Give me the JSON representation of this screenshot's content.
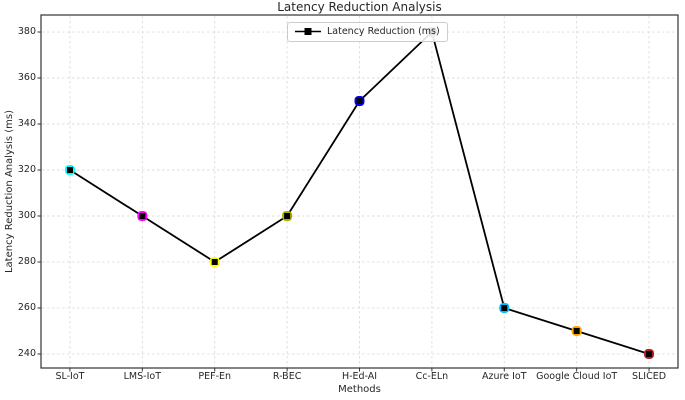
{
  "figure": {
    "background": "#ffffff",
    "spine_color": "#333333",
    "grid_color": "#dcdcdc",
    "text_color": "#262626"
  },
  "chart_data": {
    "type": "line",
    "title": "Latency Reduction Analysis",
    "xlabel": "Methods",
    "ylabel": "Latency Reduction Analysis (ms)",
    "categories": [
      "SL-IoT",
      "LMS-IoT",
      "PEF-En",
      "R-BEC",
      "H-Ed-AI",
      "Cc-ELn",
      "Azure IoT",
      "Google Cloud IoT",
      "SLICED"
    ],
    "series": [
      {
        "name": "Latency Reduction (ms)",
        "values": [
          320,
          300,
          280,
          300,
          350,
          380,
          260,
          250,
          240
        ],
        "line_color": "#000000",
        "marker": "square",
        "marker_face_color": "#000000",
        "marker_edge_colors": [
          "#00FFFF",
          "#FF00FF",
          "#FFFF00",
          "#ADAD00",
          "#0000FF",
          "#9932CC",
          "#00BFFF",
          "#FFA500",
          "#B22222"
        ]
      }
    ],
    "y_ticks": [
      240,
      260,
      280,
      300,
      320,
      340,
      360,
      380
    ],
    "ylim": [
      233.9,
      387.4
    ],
    "grid": true,
    "grid_style": "dashed",
    "legend": {
      "position": "upper center",
      "entries": [
        "Latency Reduction (ms)"
      ]
    }
  }
}
